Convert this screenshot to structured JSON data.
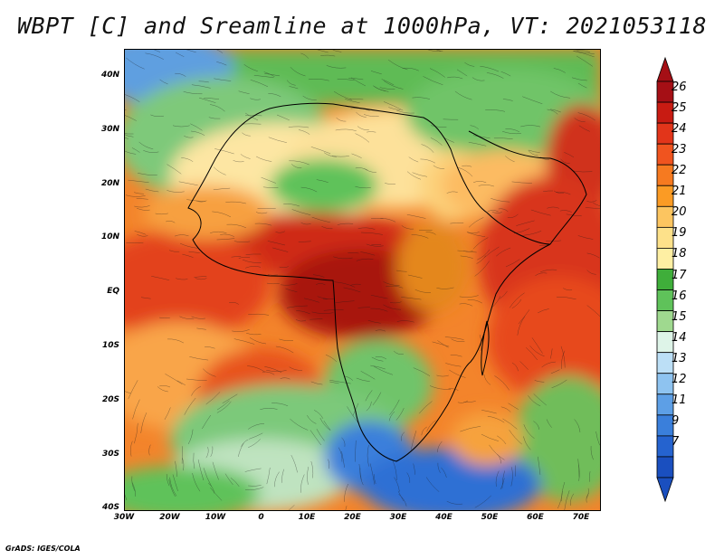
{
  "title": "WBPT [C] and Sreamline at 1000hPa, VT: 2021053118",
  "credit": "GrADS: IGES/COLA",
  "map": {
    "lat_labels": [
      "40N",
      "30N",
      "20N",
      "10N",
      "EQ",
      "10S",
      "20S",
      "30S",
      "40S"
    ],
    "lon_labels": [
      "30W",
      "20W",
      "10W",
      "0",
      "10E",
      "20E",
      "30E",
      "40E",
      "50E",
      "60E",
      "70E"
    ]
  },
  "colorbar": {
    "labels": [
      "26",
      "25",
      "24",
      "23",
      "22",
      "21",
      "20",
      "19",
      "18",
      "17",
      "16",
      "15",
      "14",
      "13",
      "12",
      "11",
      "9",
      "7"
    ],
    "colors": [
      "#a50f15",
      "#c81b12",
      "#e2351a",
      "#f0541f",
      "#f67a20",
      "#fb9b24",
      "#fcc560",
      "#fde18a",
      "#feefa3",
      "#3fae3a",
      "#5fc25a",
      "#9fd98f",
      "#def4e8",
      "#bcdff6",
      "#8ec3f0",
      "#5d9fe6",
      "#3a7fdb",
      "#2563cf",
      "#1a4fbf"
    ]
  }
}
